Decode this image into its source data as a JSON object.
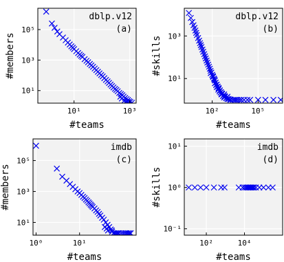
{
  "colors": {
    "marker": "#0000ee",
    "panel_bg": "#f2f2f2",
    "grid": "#ffffff",
    "axis": "#000000"
  },
  "chart_data": [
    {
      "id": "a",
      "type": "scatter",
      "title": "dblp.v12",
      "panel_label": "(a)",
      "xlabel": "#teams",
      "ylabel": "#members",
      "xscale": "log",
      "yscale": "log",
      "xlim": [
        0.5,
        1700
      ],
      "ylim": [
        1.5,
        2500000
      ],
      "xticks": [
        {
          "v": 10,
          "label": "10¹"
        },
        {
          "v": 1000,
          "label": "10³"
        }
      ],
      "yticks": [
        {
          "v": 10,
          "label": "10¹"
        },
        {
          "v": 1000,
          "label": "10³"
        },
        {
          "v": 100000,
          "label": "10⁵"
        }
      ],
      "grid": true,
      "marker": "x",
      "points": [
        [
          1,
          1500000
        ],
        [
          1.6,
          250000
        ],
        [
          2,
          130000
        ],
        [
          2.5,
          75000
        ],
        [
          3,
          50000
        ],
        [
          4,
          30000
        ],
        [
          5,
          20000
        ],
        [
          6,
          14000
        ],
        [
          7,
          10500
        ],
        [
          8,
          8000
        ],
        [
          9,
          6500
        ],
        [
          10,
          5200
        ],
        [
          12,
          3800
        ],
        [
          14,
          2900
        ],
        [
          16,
          2300
        ],
        [
          18,
          1900
        ],
        [
          20,
          1600
        ],
        [
          24,
          1150
        ],
        [
          28,
          900
        ],
        [
          32,
          720
        ],
        [
          37,
          560
        ],
        [
          42,
          450
        ],
        [
          48,
          360
        ],
        [
          55,
          280
        ],
        [
          63,
          220
        ],
        [
          72,
          170
        ],
        [
          82,
          135
        ],
        [
          94,
          105
        ],
        [
          107,
          85
        ],
        [
          122,
          65
        ],
        [
          140,
          50
        ],
        [
          160,
          40
        ],
        [
          180,
          32
        ],
        [
          205,
          25
        ],
        [
          230,
          20
        ],
        [
          260,
          16
        ],
        [
          295,
          13
        ],
        [
          330,
          11
        ],
        [
          370,
          9
        ],
        [
          420,
          7
        ],
        [
          480,
          6
        ],
        [
          540,
          5
        ],
        [
          600,
          4
        ],
        [
          680,
          3.3
        ],
        [
          770,
          2.8
        ],
        [
          860,
          2.4
        ],
        [
          950,
          2
        ],
        [
          1050,
          1.8
        ],
        [
          1200,
          1.6
        ],
        [
          520,
          3
        ],
        [
          640,
          2.2
        ],
        [
          880,
          1.6
        ],
        [
          700,
          1.8
        ],
        [
          460,
          4
        ],
        [
          800,
          1.8
        ]
      ]
    },
    {
      "id": "b",
      "type": "scatter",
      "title": "dblp.v12",
      "panel_label": "(b)",
      "xlabel": "#teams",
      "ylabel": "#skills",
      "xscale": "log",
      "yscale": "log",
      "xlim": [
        1.5,
        4000000
      ],
      "ylim": [
        0.7,
        20000
      ],
      "xticks": [
        {
          "v": 100,
          "label": "10²"
        },
        {
          "v": 100000,
          "label": "10⁵"
        }
      ],
      "yticks": [
        {
          "v": 10,
          "label": "10¹"
        },
        {
          "v": 1000,
          "label": "10³"
        }
      ],
      "grid": true,
      "marker": "x",
      "points": [
        [
          3,
          12000
        ],
        [
          4,
          7000
        ],
        [
          5,
          4500
        ],
        [
          6,
          3200
        ],
        [
          7,
          2400
        ],
        [
          8,
          1800
        ],
        [
          9,
          1400
        ],
        [
          10,
          1100
        ],
        [
          12,
          800
        ],
        [
          14,
          600
        ],
        [
          16,
          460
        ],
        [
          18,
          370
        ],
        [
          20,
          300
        ],
        [
          23,
          230
        ],
        [
          26,
          180
        ],
        [
          30,
          140
        ],
        [
          34,
          110
        ],
        [
          38,
          88
        ],
        [
          43,
          70
        ],
        [
          48,
          56
        ],
        [
          55,
          45
        ],
        [
          62,
          36
        ],
        [
          70,
          29
        ],
        [
          78,
          23
        ],
        [
          88,
          19
        ],
        [
          100,
          15
        ],
        [
          115,
          12
        ],
        [
          130,
          10
        ],
        [
          150,
          8
        ],
        [
          170,
          6.5
        ],
        [
          200,
          5.2
        ],
        [
          230,
          4.2
        ],
        [
          270,
          3.4
        ],
        [
          320,
          2.8
        ],
        [
          380,
          2.3
        ],
        [
          450,
          1.9
        ],
        [
          550,
          1.6
        ],
        [
          700,
          1.4
        ],
        [
          900,
          1.25
        ],
        [
          1200,
          1.1
        ],
        [
          1600,
          1
        ],
        [
          2200,
          1
        ],
        [
          3500,
          1
        ],
        [
          6000,
          1
        ],
        [
          12000,
          1
        ],
        [
          30000,
          1
        ],
        [
          100000,
          1
        ],
        [
          300000,
          1
        ],
        [
          1000000,
          1
        ],
        [
          3000000,
          1
        ],
        [
          150,
          6
        ],
        [
          200,
          4
        ],
        [
          250,
          3
        ],
        [
          300,
          2.5
        ],
        [
          350,
          2.2
        ],
        [
          400,
          1.8
        ],
        [
          500,
          1.5
        ],
        [
          600,
          1.3
        ],
        [
          800,
          1.2
        ],
        [
          1000,
          1.1
        ],
        [
          180,
          5
        ],
        [
          260,
          3.6
        ],
        [
          420,
          2
        ],
        [
          650,
          1.5
        ],
        [
          1500,
          1.05
        ],
        [
          80,
          18
        ],
        [
          110,
          13
        ],
        [
          140,
          9
        ],
        [
          600,
          1.8
        ],
        [
          1000,
          1.4
        ],
        [
          2800,
          1
        ],
        [
          4500,
          1
        ],
        [
          8000,
          1
        ],
        [
          20000,
          1
        ]
      ]
    },
    {
      "id": "c",
      "type": "scatter",
      "title": "imdb",
      "panel_label": "(c)",
      "xlabel": "#teams",
      "ylabel": "#members",
      "xscale": "log",
      "yscale": "log",
      "xlim": [
        0.85,
        200
      ],
      "ylim": [
        1.5,
        2500000
      ],
      "xticks": [
        {
          "v": 1,
          "label": "10⁰"
        },
        {
          "v": 10,
          "label": "10¹"
        }
      ],
      "yticks": [
        {
          "v": 10,
          "label": "10¹"
        },
        {
          "v": 1000,
          "label": "10³"
        },
        {
          "v": 100000,
          "label": "10⁵"
        }
      ],
      "grid": true,
      "marker": "x",
      "points": [
        [
          1,
          900000
        ],
        [
          3,
          30000
        ],
        [
          4,
          9000
        ],
        [
          5,
          5000
        ],
        [
          6,
          3000
        ],
        [
          7,
          2000
        ],
        [
          8,
          1400
        ],
        [
          9,
          1000
        ],
        [
          10,
          800
        ],
        [
          11,
          600
        ],
        [
          12,
          460
        ],
        [
          13,
          380
        ],
        [
          14,
          300
        ],
        [
          15,
          250
        ],
        [
          16,
          200
        ],
        [
          17,
          170
        ],
        [
          18,
          140
        ],
        [
          19,
          120
        ],
        [
          20,
          100
        ],
        [
          22,
          80
        ],
        [
          24,
          60
        ],
        [
          26,
          48
        ],
        [
          28,
          36
        ],
        [
          30,
          28
        ],
        [
          33,
          20
        ],
        [
          36,
          15
        ],
        [
          40,
          10
        ],
        [
          44,
          7
        ],
        [
          48,
          5
        ],
        [
          52,
          3.5
        ],
        [
          56,
          2.5
        ],
        [
          60,
          2
        ],
        [
          65,
          2
        ],
        [
          70,
          2
        ],
        [
          80,
          2
        ],
        [
          90,
          2
        ],
        [
          100,
          2
        ],
        [
          110,
          2
        ],
        [
          120,
          2
        ],
        [
          130,
          2
        ],
        [
          140,
          2
        ],
        [
          150,
          2
        ],
        [
          45,
          3
        ],
        [
          55,
          3
        ],
        [
          75,
          2
        ],
        [
          38,
          5
        ],
        [
          42,
          4
        ]
      ]
    },
    {
      "id": "d",
      "type": "scatter",
      "title": "imdb",
      "panel_label": "(d)",
      "xlabel": "#teams",
      "ylabel": "#skills",
      "xscale": "log",
      "yscale": "log",
      "xlim": [
        7,
        1000000
      ],
      "ylim": [
        0.07,
        15
      ],
      "xticks": [
        {
          "v": 100,
          "label": "10²"
        },
        {
          "v": 10000,
          "label": "10⁴"
        }
      ],
      "yticks": [
        {
          "v": 0.1,
          "label": "10⁻¹"
        },
        {
          "v": 1,
          "label": "10⁰"
        },
        {
          "v": 10,
          "label": "10¹"
        }
      ],
      "grid": true,
      "marker": "x",
      "points": [
        [
          12,
          1
        ],
        [
          25,
          1
        ],
        [
          50,
          1
        ],
        [
          100,
          1
        ],
        [
          250,
          1
        ],
        [
          600,
          1
        ],
        [
          900,
          1
        ],
        [
          5000,
          1
        ],
        [
          8000,
          1
        ],
        [
          10000,
          1
        ],
        [
          12000,
          1
        ],
        [
          14000,
          1
        ],
        [
          16000,
          1
        ],
        [
          18000,
          1
        ],
        [
          20000,
          1
        ],
        [
          22000,
          1
        ],
        [
          25000,
          1
        ],
        [
          28000,
          1
        ],
        [
          32000,
          1
        ],
        [
          40000,
          1
        ],
        [
          60000,
          1
        ],
        [
          100000,
          1
        ],
        [
          180000,
          1
        ],
        [
          300000,
          1
        ]
      ]
    }
  ]
}
